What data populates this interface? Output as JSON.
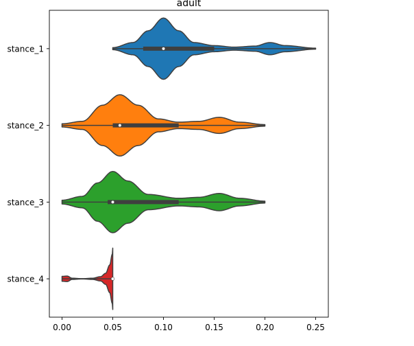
{
  "chart_data": {
    "type": "violin",
    "orientation": "horizontal",
    "title": "adult",
    "xlabel": "",
    "ylabel": "",
    "xlim": [
      -0.0125,
      0.2625
    ],
    "xticks": [
      0.0,
      0.05,
      0.1,
      0.15,
      0.2,
      0.25
    ],
    "xtick_labels": [
      "0.00",
      "0.05",
      "0.10",
      "0.15",
      "0.20",
      "0.25"
    ],
    "grid": false,
    "categories": [
      "stance_1",
      "stance_2",
      "stance_3",
      "stance_4"
    ],
    "series": [
      {
        "name": "stance_1",
        "color": "#1f77b4",
        "range": [
          0.05,
          0.25
        ],
        "quartiles": [
          0.08,
          0.1,
          0.15
        ],
        "median": 0.1,
        "density": [
          [
            0.05,
            0.02
          ],
          [
            0.07,
            0.12
          ],
          [
            0.085,
            0.35
          ],
          [
            0.1,
            0.6
          ],
          [
            0.115,
            0.35
          ],
          [
            0.13,
            0.12
          ],
          [
            0.15,
            0.06
          ],
          [
            0.17,
            0.03
          ],
          [
            0.19,
            0.05
          ],
          [
            0.205,
            0.12
          ],
          [
            0.22,
            0.06
          ],
          [
            0.25,
            0.01
          ]
        ]
      },
      {
        "name": "stance_2",
        "color": "#ff7f0e",
        "range": [
          0.0,
          0.2
        ],
        "quartiles": [
          0.05,
          0.057,
          0.115
        ],
        "median": 0.057,
        "density": [
          [
            0.0,
            0.02
          ],
          [
            0.02,
            0.05
          ],
          [
            0.04,
            0.25
          ],
          [
            0.057,
            0.38
          ],
          [
            0.075,
            0.25
          ],
          [
            0.095,
            0.08
          ],
          [
            0.115,
            0.04
          ],
          [
            0.135,
            0.05
          ],
          [
            0.155,
            0.1
          ],
          [
            0.175,
            0.04
          ],
          [
            0.2,
            0.01
          ]
        ]
      },
      {
        "name": "stance_3",
        "color": "#2ca02c",
        "range": [
          0.0,
          0.2
        ],
        "quartiles": [
          0.045,
          0.05,
          0.115
        ],
        "median": 0.05,
        "density": [
          [
            0.0,
            0.02
          ],
          [
            0.02,
            0.06
          ],
          [
            0.035,
            0.2
          ],
          [
            0.05,
            0.32
          ],
          [
            0.065,
            0.22
          ],
          [
            0.085,
            0.08
          ],
          [
            0.115,
            0.04
          ],
          [
            0.135,
            0.05
          ],
          [
            0.155,
            0.09
          ],
          [
            0.175,
            0.04
          ],
          [
            0.2,
            0.01
          ]
        ]
      },
      {
        "name": "stance_4",
        "color": "#d62728",
        "range": [
          0.0,
          0.05
        ],
        "quartiles": [
          0.05,
          0.05,
          0.05
        ],
        "median": 0.05,
        "density": [
          [
            0.0,
            0.08
          ],
          [
            0.005,
            0.09
          ],
          [
            0.01,
            0.02
          ],
          [
            0.02,
            0.005
          ],
          [
            0.03,
            0.02
          ],
          [
            0.038,
            0.07
          ],
          [
            0.043,
            0.18
          ],
          [
            0.047,
            0.45
          ],
          [
            0.0495,
            0.8
          ],
          [
            0.05,
            1.0
          ]
        ]
      }
    ]
  }
}
